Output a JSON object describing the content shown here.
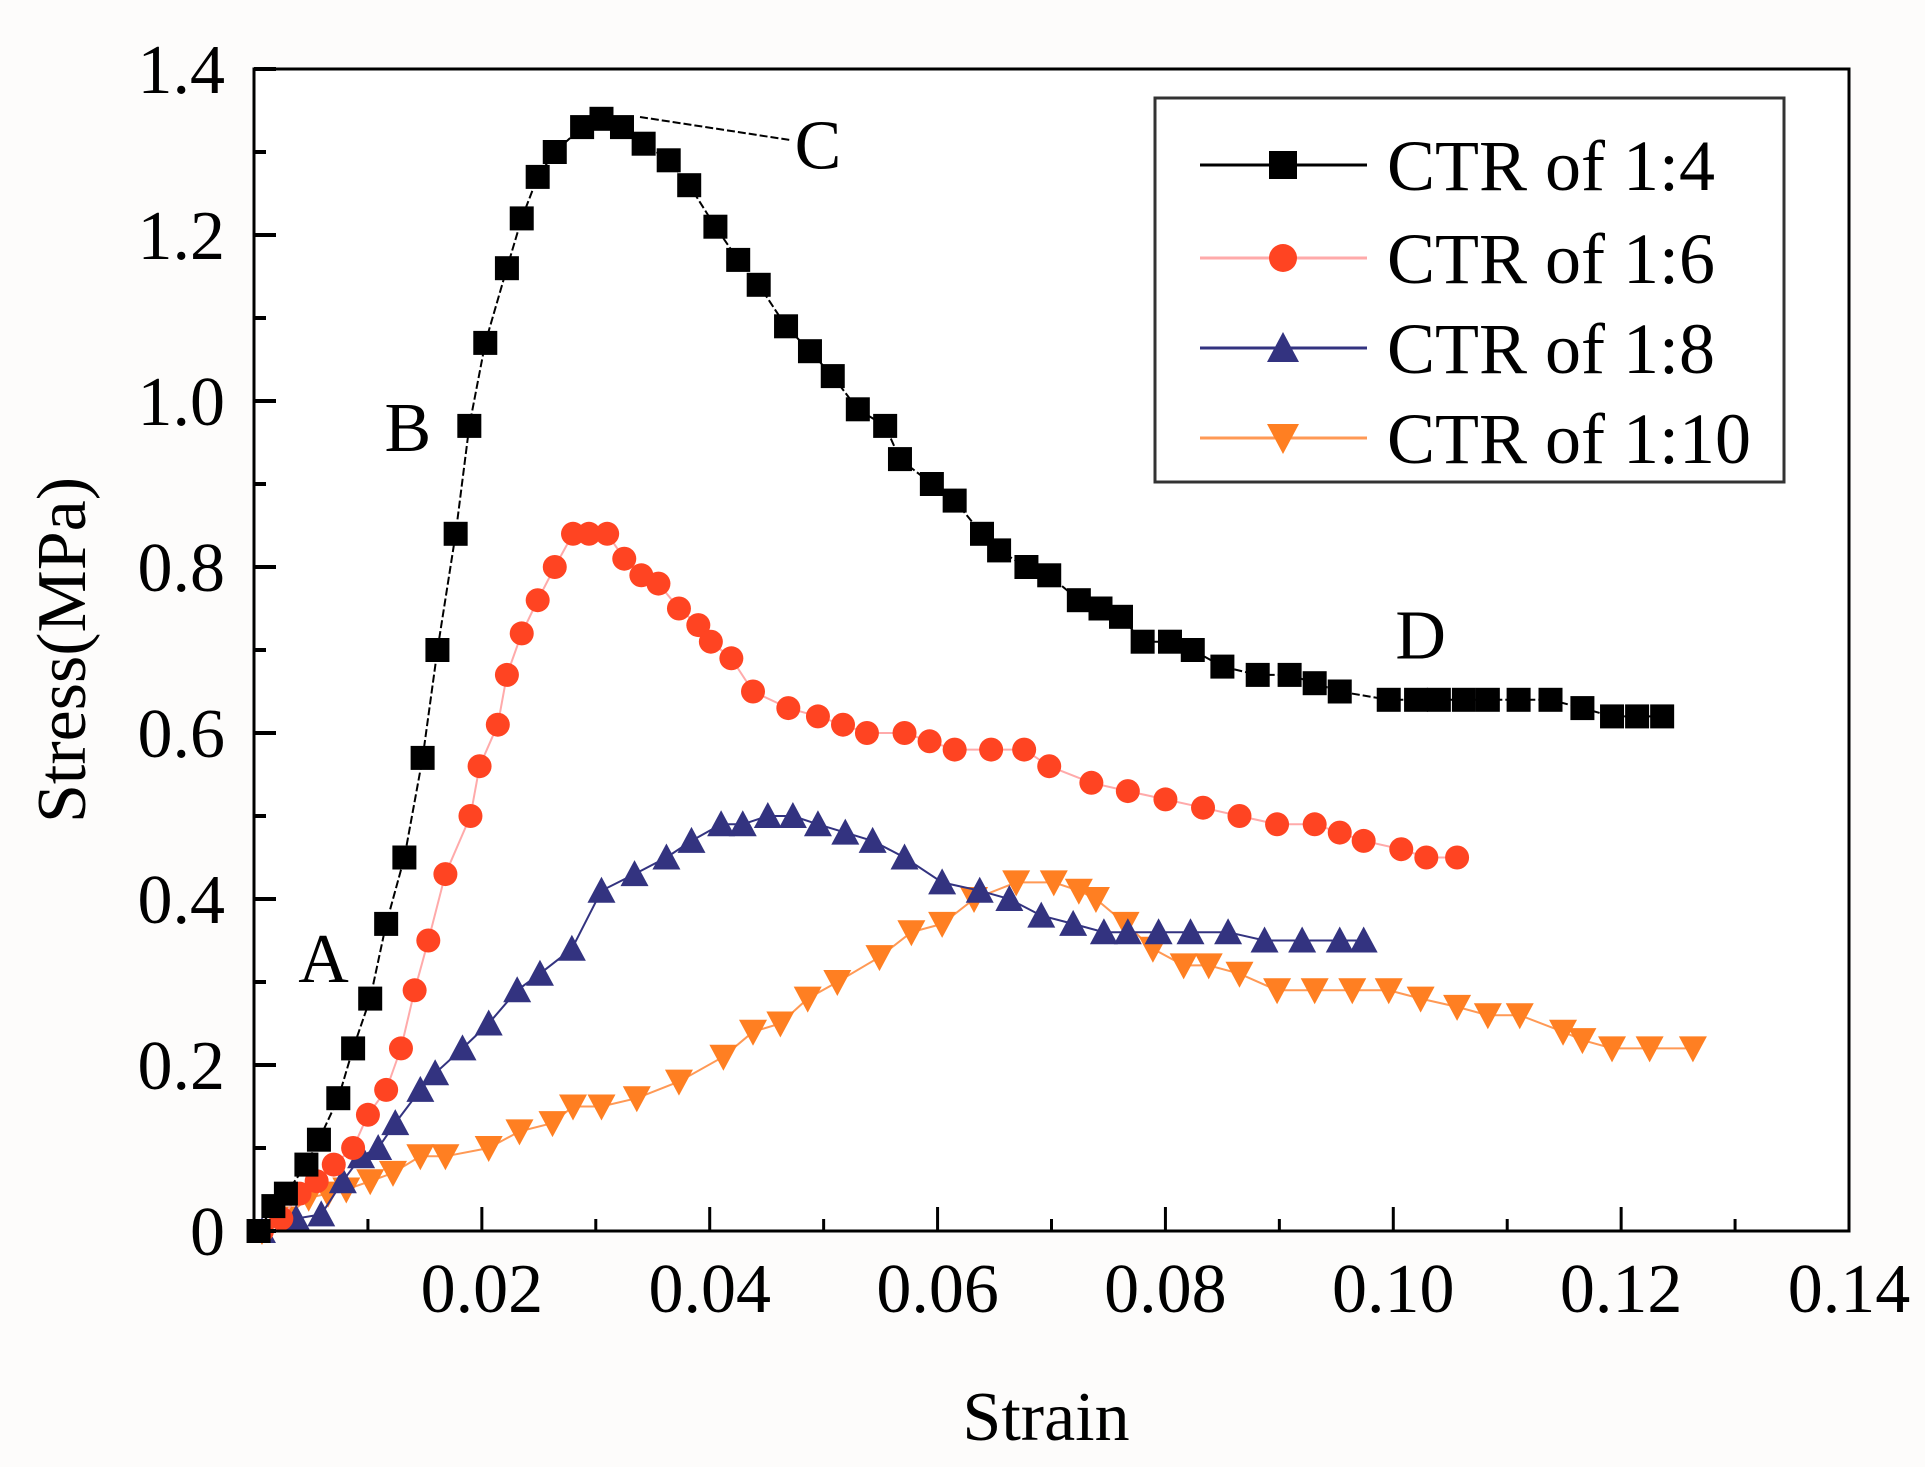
{
  "chart_data": {
    "type": "line",
    "title": "",
    "xlabel": "Strain",
    "ylabel": "Stress(MPa)",
    "xlim": [
      0,
      0.14
    ],
    "ylim": [
      0,
      1.4
    ],
    "xticks": [
      0.02,
      0.04,
      0.06,
      0.08,
      0.1,
      0.12,
      0.14
    ],
    "xtick_labels": [
      "0.02",
      "0.04",
      "0.06",
      "0.08",
      "0.10",
      "0.12",
      "0.14"
    ],
    "yticks": [
      0,
      0.2,
      0.4,
      0.6,
      0.8,
      1.0,
      1.2,
      1.4
    ],
    "ytick_labels": [
      "0",
      "0.2",
      "0.4",
      "0.6",
      "0.8",
      "1.0",
      "1.2",
      "1.4"
    ],
    "grid": false,
    "legend_position": "top-right",
    "annotations": [
      {
        "label": "A",
        "x": 0.0061,
        "y": 0.33
      },
      {
        "label": "B",
        "x": 0.0135,
        "y": 0.97
      },
      {
        "label": "C",
        "x": 0.0495,
        "y": 1.31
      },
      {
        "label": "D",
        "x": 0.1024,
        "y": 0.72
      }
    ],
    "series": [
      {
        "name": "CTR of 1:4",
        "marker": "square",
        "color": "#000000",
        "line_color": "#000000",
        "x": [
          0.0004,
          0.0017,
          0.0028,
          0.0046,
          0.0057,
          0.0074,
          0.0087,
          0.0102,
          0.0116,
          0.0132,
          0.0148,
          0.0161,
          0.0177,
          0.0189,
          0.0203,
          0.0222,
          0.0235,
          0.0249,
          0.0264,
          0.0288,
          0.0305,
          0.0323,
          0.0342,
          0.0364,
          0.0382,
          0.0405,
          0.0425,
          0.0443,
          0.0467,
          0.0488,
          0.0508,
          0.053,
          0.0554,
          0.0567,
          0.0595,
          0.0615,
          0.0639,
          0.0654,
          0.0678,
          0.0698,
          0.0724,
          0.0743,
          0.0761,
          0.078,
          0.0804,
          0.0824,
          0.085,
          0.0881,
          0.0909,
          0.0931,
          0.0953,
          0.0996,
          0.102,
          0.104,
          0.1062,
          0.1083,
          0.111,
          0.1138,
          0.1166,
          0.1192,
          0.1214,
          0.1236
        ],
        "y": [
          0.0,
          0.03,
          0.045,
          0.08,
          0.11,
          0.16,
          0.22,
          0.28,
          0.37,
          0.45,
          0.57,
          0.7,
          0.84,
          0.97,
          1.07,
          1.16,
          1.22,
          1.27,
          1.3,
          1.33,
          1.34,
          1.33,
          1.31,
          1.29,
          1.26,
          1.21,
          1.17,
          1.14,
          1.09,
          1.06,
          1.03,
          0.99,
          0.97,
          0.93,
          0.9,
          0.88,
          0.84,
          0.82,
          0.8,
          0.79,
          0.76,
          0.75,
          0.74,
          0.71,
          0.71,
          0.7,
          0.68,
          0.67,
          0.67,
          0.66,
          0.65,
          0.64,
          0.64,
          0.64,
          0.64,
          0.64,
          0.64,
          0.64,
          0.63,
          0.62,
          0.62,
          0.62
        ]
      },
      {
        "name": "CTR of 1:6",
        "marker": "circle",
        "color": "#ff4422",
        "line_color": "#ffaaaa",
        "x": [
          0.0007,
          0.0024,
          0.004,
          0.0055,
          0.007,
          0.0087,
          0.01,
          0.0116,
          0.0129,
          0.0141,
          0.0153,
          0.0168,
          0.019,
          0.0198,
          0.0214,
          0.0222,
          0.0235,
          0.0249,
          0.0264,
          0.028,
          0.0294,
          0.031,
          0.0325,
          0.034,
          0.0355,
          0.0373,
          0.039,
          0.0401,
          0.0419,
          0.0438,
          0.0469,
          0.0495,
          0.0517,
          0.0538,
          0.0571,
          0.0593,
          0.0615,
          0.0647,
          0.0676,
          0.0698,
          0.0735,
          0.0767,
          0.08,
          0.0833,
          0.0865,
          0.0898,
          0.0931,
          0.0953,
          0.0974,
          0.1007,
          0.1029,
          0.1056
        ],
        "y": [
          0.0,
          0.015,
          0.045,
          0.06,
          0.08,
          0.1,
          0.14,
          0.17,
          0.22,
          0.29,
          0.35,
          0.43,
          0.5,
          0.56,
          0.61,
          0.67,
          0.72,
          0.76,
          0.8,
          0.84,
          0.84,
          0.84,
          0.81,
          0.79,
          0.78,
          0.75,
          0.73,
          0.71,
          0.69,
          0.65,
          0.63,
          0.62,
          0.61,
          0.6,
          0.6,
          0.59,
          0.58,
          0.58,
          0.58,
          0.56,
          0.54,
          0.53,
          0.52,
          0.51,
          0.5,
          0.49,
          0.49,
          0.48,
          0.47,
          0.46,
          0.45,
          0.45
        ]
      },
      {
        "name": "CTR of 1:8",
        "marker": "triangle-up",
        "color": "#333380",
        "line_color": "#333380",
        "x": [
          0.0007,
          0.0037,
          0.0059,
          0.0078,
          0.0094,
          0.0109,
          0.0124,
          0.0146,
          0.0159,
          0.0183,
          0.0206,
          0.0231,
          0.0251,
          0.0279,
          0.0305,
          0.0334,
          0.0362,
          0.0384,
          0.041,
          0.0429,
          0.0451,
          0.0473,
          0.0495,
          0.0519,
          0.0543,
          0.0571,
          0.0604,
          0.0637,
          0.0663,
          0.0691,
          0.0719,
          0.0746,
          0.0767,
          0.0794,
          0.0822,
          0.0855,
          0.0887,
          0.092,
          0.0953,
          0.0974
        ],
        "y": [
          0.0,
          0.015,
          0.02,
          0.06,
          0.09,
          0.1,
          0.13,
          0.17,
          0.19,
          0.22,
          0.25,
          0.29,
          0.31,
          0.34,
          0.41,
          0.43,
          0.45,
          0.47,
          0.49,
          0.49,
          0.5,
          0.5,
          0.49,
          0.48,
          0.47,
          0.45,
          0.42,
          0.41,
          0.4,
          0.38,
          0.37,
          0.36,
          0.36,
          0.36,
          0.36,
          0.36,
          0.35,
          0.35,
          0.35,
          0.35
        ]
      },
      {
        "name": "CTR of 1:10",
        "marker": "triangle-down",
        "color": "#ff7f22",
        "line_color": "#ff9955",
        "x": [
          0.0007,
          0.0026,
          0.0048,
          0.0065,
          0.0081,
          0.0102,
          0.0122,
          0.0146,
          0.0168,
          0.0206,
          0.0233,
          0.0262,
          0.028,
          0.0305,
          0.0336,
          0.0373,
          0.0412,
          0.0438,
          0.0462,
          0.0486,
          0.0512,
          0.0549,
          0.0577,
          0.0604,
          0.0632,
          0.0669,
          0.0702,
          0.0724,
          0.0739,
          0.0765,
          0.0789,
          0.0816,
          0.0838,
          0.0865,
          0.0898,
          0.0931,
          0.0964,
          0.0996,
          0.1024,
          0.1056,
          0.1083,
          0.1111,
          0.1149,
          0.1166,
          0.1192,
          0.1225,
          0.1263
        ],
        "y": [
          0.0,
          0.015,
          0.04,
          0.045,
          0.05,
          0.06,
          0.07,
          0.09,
          0.09,
          0.1,
          0.12,
          0.13,
          0.15,
          0.15,
          0.16,
          0.18,
          0.21,
          0.24,
          0.25,
          0.28,
          0.3,
          0.33,
          0.36,
          0.37,
          0.4,
          0.42,
          0.42,
          0.41,
          0.4,
          0.37,
          0.34,
          0.32,
          0.32,
          0.31,
          0.29,
          0.29,
          0.29,
          0.29,
          0.28,
          0.27,
          0.26,
          0.26,
          0.24,
          0.23,
          0.22,
          0.22,
          0.22
        ]
      }
    ]
  }
}
